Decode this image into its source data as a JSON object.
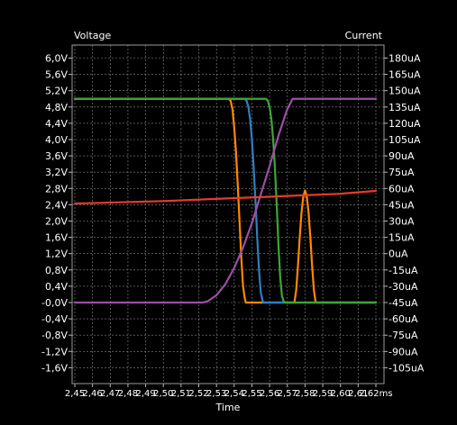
{
  "chart_data": {
    "type": "line",
    "left_axis_label": "Voltage",
    "right_axis_label": "Current",
    "xlabel": "Time",
    "x_tick_labels": [
      "2,45",
      "2,46",
      "2,47",
      "2,48",
      "2,49",
      "2,50",
      "2,51",
      "2,52",
      "2,53",
      "2,54",
      "2,55",
      "2,56",
      "2,57",
      "2,58",
      "2,59",
      "2,60",
      "2,61",
      "2,62"
    ],
    "x_tick_unit": "ms",
    "xlim": [
      2.45,
      2.62
    ],
    "y_left_ticks": [
      "6,0V",
      "5,6V",
      "5,2V",
      "4,8V",
      "4,4V",
      "4,0V",
      "3,6V",
      "3,2V",
      "2,8V",
      "2,4V",
      "2,0V",
      "1,6V",
      "1,2V",
      "0,8V",
      "0,4V",
      "-0,0V",
      "-0,4V",
      "-0,8V",
      "-1,2V",
      "-1,6V"
    ],
    "y_left_values": [
      6.0,
      5.6,
      5.2,
      4.8,
      4.4,
      4.0,
      3.6,
      3.2,
      2.8,
      2.4,
      2.0,
      1.6,
      1.2,
      0.8,
      0.4,
      0.0,
      -0.4,
      -0.8,
      -1.2,
      -1.6
    ],
    "y_right_ticks": [
      "180uA",
      "165uA",
      "150uA",
      "135uA",
      "120uA",
      "105uA",
      "90uA",
      "75uA",
      "60uA",
      "45uA",
      "30uA",
      "15uA",
      "0uA",
      "-15uA",
      "-30uA",
      "-45uA",
      "-60uA",
      "-75uA",
      "-90uA",
      "-105uA"
    ],
    "y_right_values": [
      180,
      165,
      150,
      135,
      120,
      105,
      90,
      75,
      60,
      45,
      30,
      15,
      0,
      -15,
      -30,
      -45,
      -60,
      -75,
      -90,
      -105
    ],
    "ylim_left": [
      -1.6,
      6.0
    ],
    "ylim_right": [
      -105,
      180
    ],
    "grid": true,
    "series": [
      {
        "axis": "left",
        "color": "#ff8800",
        "points": [
          [
            2.45,
            5.0
          ],
          [
            2.537,
            5.0
          ],
          [
            2.538,
            4.95
          ],
          [
            2.539,
            4.75
          ],
          [
            2.54,
            4.3
          ],
          [
            2.541,
            3.7
          ],
          [
            2.542,
            2.9
          ],
          [
            2.543,
            2.0
          ],
          [
            2.544,
            1.1
          ],
          [
            2.545,
            0.4
          ],
          [
            2.546,
            0.1
          ],
          [
            2.5465,
            0.0
          ],
          [
            2.574,
            0.0
          ],
          [
            2.575,
            0.3
          ],
          [
            2.576,
            0.9
          ],
          [
            2.577,
            1.6
          ],
          [
            2.578,
            2.2
          ],
          [
            2.579,
            2.6
          ],
          [
            2.58,
            2.75
          ],
          [
            2.581,
            2.6
          ],
          [
            2.582,
            2.2
          ],
          [
            2.583,
            1.6
          ],
          [
            2.584,
            0.9
          ],
          [
            2.585,
            0.3
          ],
          [
            2.586,
            0.0
          ],
          [
            2.62,
            0.0
          ]
        ]
      },
      {
        "axis": "left",
        "color": "#2f7fc1",
        "points": [
          [
            2.45,
            5.0
          ],
          [
            2.546,
            5.0
          ],
          [
            2.547,
            4.95
          ],
          [
            2.548,
            4.8
          ],
          [
            2.549,
            4.5
          ],
          [
            2.55,
            4.0
          ],
          [
            2.551,
            3.3
          ],
          [
            2.552,
            2.5
          ],
          [
            2.553,
            1.6
          ],
          [
            2.554,
            0.8
          ],
          [
            2.555,
            0.25
          ],
          [
            2.556,
            0.05
          ],
          [
            2.5565,
            0.0
          ],
          [
            2.62,
            0.0
          ]
        ]
      },
      {
        "axis": "left",
        "color": "#3fa535",
        "points": [
          [
            2.45,
            5.0
          ],
          [
            2.558,
            5.0
          ],
          [
            2.559,
            4.95
          ],
          [
            2.56,
            4.8
          ],
          [
            2.561,
            4.5
          ],
          [
            2.562,
            4.0
          ],
          [
            2.563,
            3.3
          ],
          [
            2.564,
            2.4
          ],
          [
            2.565,
            1.4
          ],
          [
            2.566,
            0.6
          ],
          [
            2.567,
            0.15
          ],
          [
            2.568,
            0.02
          ],
          [
            2.5685,
            0.0
          ],
          [
            2.62,
            0.0
          ]
        ]
      },
      {
        "axis": "left",
        "color": "#9b4fa5",
        "points": [
          [
            2.45,
            0.0
          ],
          [
            2.522,
            0.0
          ],
          [
            2.525,
            0.03
          ],
          [
            2.53,
            0.18
          ],
          [
            2.535,
            0.45
          ],
          [
            2.54,
            0.85
          ],
          [
            2.545,
            1.35
          ],
          [
            2.55,
            1.95
          ],
          [
            2.555,
            2.65
          ],
          [
            2.56,
            3.35
          ],
          [
            2.565,
            4.1
          ],
          [
            2.57,
            4.75
          ],
          [
            2.573,
            5.0
          ],
          [
            2.62,
            5.0
          ]
        ]
      },
      {
        "axis": "left",
        "color": "#e83b2e",
        "points": [
          [
            2.45,
            2.43
          ],
          [
            2.5,
            2.49
          ],
          [
            2.55,
            2.58
          ],
          [
            2.6,
            2.67
          ],
          [
            2.62,
            2.74
          ]
        ]
      }
    ]
  }
}
